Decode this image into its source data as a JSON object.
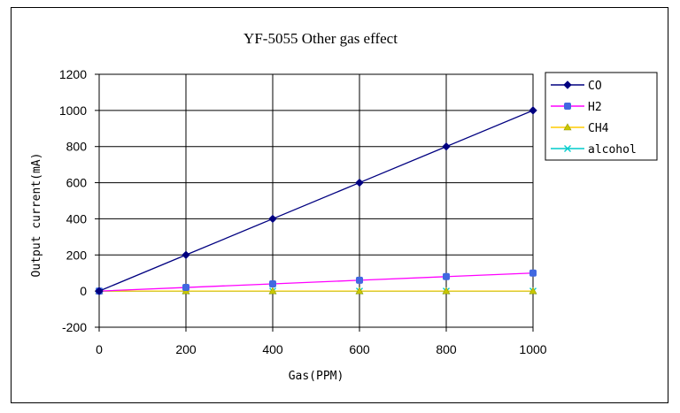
{
  "chart_data": {
    "type": "line",
    "title": "YF-5055 Other gas effect",
    "xlabel": "Gas(PPM)",
    "ylabel": "Output current(mA)",
    "x": [
      0,
      200,
      400,
      600,
      800,
      1000
    ],
    "xlim": [
      0,
      1000
    ],
    "ylim": [
      -200,
      1200
    ],
    "xticks": [
      "0",
      "200",
      "400",
      "600",
      "800",
      "1000"
    ],
    "yticks": [
      "-200",
      "0",
      "200",
      "400",
      "600",
      "800",
      "1000",
      "1200"
    ],
    "grid": true,
    "legend_position": "right",
    "series": [
      {
        "name": "CO",
        "values": [
          0,
          200,
          400,
          600,
          800,
          1000
        ],
        "color": "#000080",
        "marker": "diamond"
      },
      {
        "name": "H2",
        "values": [
          0,
          20,
          40,
          60,
          80,
          100
        ],
        "color": "#ff00ff",
        "marker_color": "#4169e1",
        "marker": "square"
      },
      {
        "name": "CH4",
        "values": [
          0,
          0,
          0,
          0,
          0,
          0
        ],
        "color": "#ffcc00",
        "marker_color": "#c8c800",
        "marker": "triangle"
      },
      {
        "name": "alcohol",
        "values": [
          0,
          0,
          0,
          0,
          0,
          0
        ],
        "color": "#00cccc",
        "marker": "x"
      }
    ]
  }
}
